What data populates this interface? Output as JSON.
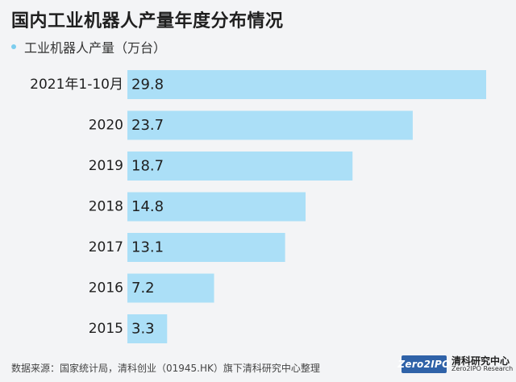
{
  "colors": {
    "bar": "#abdff7",
    "legend_dot": "#7ccdee",
    "text": "#1f1f1f"
  },
  "chart_data": {
    "type": "bar",
    "orientation": "horizontal",
    "title": "国内工业机器人产量年度分布情况",
    "legend": "工业机器人产量（万台）",
    "categories": [
      "2021年1-10月",
      "2020",
      "2019",
      "2018",
      "2017",
      "2016",
      "2015"
    ],
    "values": [
      29.8,
      23.7,
      18.7,
      14.8,
      13.1,
      7.2,
      3.3
    ],
    "value_labels": [
      "29.8",
      "23.7",
      "18.7",
      "14.8",
      "13.1",
      "7.2",
      "3.3"
    ],
    "xlim": [
      0,
      29.8
    ],
    "grid": false,
    "legend_position": "top-left"
  },
  "footer": {
    "source": "数据来源：国家统计局，清科创业（01945.HK）旗下清科研究中心整理",
    "logo_mark": "Zero2IPO",
    "logo_cn": "清科研究中心",
    "logo_en": "Zero2IPO Research"
  }
}
